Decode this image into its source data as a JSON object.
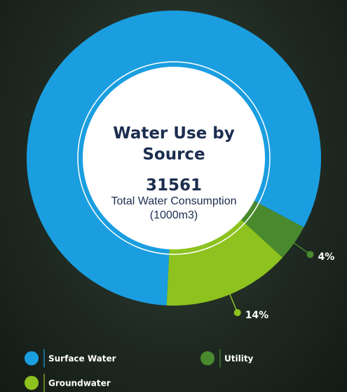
{
  "chart_data": {
    "type": "pie",
    "title": "Water Use by Source",
    "center_value": 31561,
    "center_label": "Total Water Consumption (1000m3)",
    "categories": [
      "Surface Water",
      "Groundwater",
      "Utility"
    ],
    "values": [
      82,
      14,
      4
    ],
    "value_labels": [
      null,
      "14%",
      "4%"
    ],
    "colors": [
      "#1a9ee0",
      "#8dc21f",
      "#4a8a2e"
    ]
  }
}
